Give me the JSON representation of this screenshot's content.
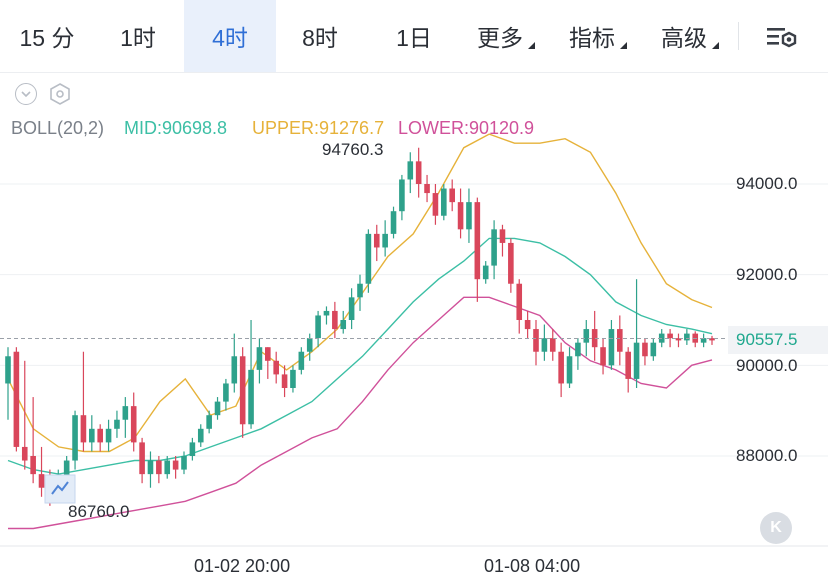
{
  "toolbar": {
    "timeframes": [
      "15 分",
      "1时",
      "4时",
      "8时",
      "1日"
    ],
    "active_index": 2,
    "menus": [
      "更多",
      "指标",
      "高级"
    ],
    "settings_icon": "chart-settings-icon"
  },
  "controls": {
    "collapse_icon": "chevron-down-icon",
    "settings_icon": "hexagon-settings-icon"
  },
  "indicator": {
    "name": "BOLL(20,2)",
    "mid_label": "MID:90698.8",
    "upper_label": "UPPER:91276.7",
    "lower_label": "LOWER:90120.9",
    "colors": {
      "mid": "#3cbfa5",
      "upper": "#e6b23a",
      "lower": "#d0519a",
      "name": "#7a8089"
    }
  },
  "colors": {
    "up": "#2ea18b",
    "down": "#d9465b"
  },
  "chart_data": {
    "type": "candlestick",
    "y_ticks": [
      "94000.0",
      "92000.0",
      "90000.0",
      "88000.0"
    ],
    "x_ticks": [
      "01-02 20:00",
      "01-08 04:00"
    ],
    "current_price": "90557.5",
    "high_label": "94760.3",
    "low_label": "86760.0",
    "ylim": [
      86300,
      95300
    ],
    "candles": [
      [
        89600,
        90200,
        88800,
        90400
      ],
      [
        90300,
        88200,
        88100,
        90400
      ],
      [
        88200,
        87900,
        87700,
        90100
      ],
      [
        88000,
        87600,
        87400,
        89300
      ],
      [
        87600,
        87300,
        87100,
        88200
      ],
      [
        87300,
        87200,
        86900,
        87700
      ],
      [
        87200,
        87500,
        87000,
        87700
      ],
      [
        87500,
        87900,
        87300,
        88000
      ],
      [
        87900,
        88900,
        87700,
        89000
      ],
      [
        88900,
        88300,
        88100,
        90300
      ],
      [
        88300,
        88600,
        88100,
        88900
      ],
      [
        88600,
        88300,
        88100,
        88700
      ],
      [
        88300,
        88600,
        88100,
        88800
      ],
      [
        88600,
        88800,
        88400,
        89000
      ],
      [
        88800,
        89100,
        88400,
        89300
      ],
      [
        89100,
        88300,
        88100,
        89400
      ],
      [
        88300,
        87600,
        87400,
        88400
      ],
      [
        87600,
        87900,
        87300,
        88100
      ],
      [
        87900,
        87600,
        87400,
        88000
      ],
      [
        87600,
        87900,
        87500,
        88000
      ],
      [
        87900,
        87700,
        87500,
        88000
      ],
      [
        87700,
        88000,
        87600,
        88100
      ],
      [
        88000,
        88300,
        87900,
        88400
      ],
      [
        88300,
        88600,
        88200,
        88700
      ],
      [
        88600,
        88900,
        88500,
        89000
      ],
      [
        88900,
        89200,
        88800,
        89300
      ],
      [
        89200,
        89600,
        89000,
        89700
      ],
      [
        89600,
        90200,
        89400,
        90700
      ],
      [
        90200,
        88700,
        88400,
        90400
      ],
      [
        88700,
        89900,
        88600,
        91000
      ],
      [
        89900,
        90400,
        89600,
        90600
      ],
      [
        90400,
        90100,
        89700,
        90400
      ],
      [
        90100,
        89800,
        89600,
        90300
      ],
      [
        89800,
        89500,
        89300,
        90000
      ],
      [
        89500,
        89900,
        89400,
        90000
      ],
      [
        89900,
        90300,
        89800,
        90400
      ],
      [
        90300,
        90600,
        90100,
        90700
      ],
      [
        90600,
        91100,
        90400,
        91200
      ],
      [
        91100,
        91200,
        90900,
        91300
      ],
      [
        91200,
        90800,
        90600,
        91400
      ],
      [
        90800,
        91000,
        90700,
        91200
      ],
      [
        91000,
        91500,
        90800,
        91700
      ],
      [
        91500,
        91800,
        91200,
        92000
      ],
      [
        91800,
        92900,
        91600,
        93000
      ],
      [
        92900,
        92600,
        92300,
        93100
      ],
      [
        92600,
        92900,
        92400,
        93200
      ],
      [
        92900,
        93400,
        92800,
        93500
      ],
      [
        93400,
        94100,
        93200,
        94200
      ],
      [
        94100,
        94500,
        93800,
        94700
      ],
      [
        94500,
        94000,
        93700,
        94800
      ],
      [
        94000,
        93800,
        93600,
        94200
      ],
      [
        93800,
        93300,
        93100,
        94000
      ],
      [
        93300,
        93900,
        93200,
        94000
      ],
      [
        93900,
        93600,
        93400,
        94100
      ],
      [
        93600,
        93000,
        92800,
        93900
      ],
      [
        93000,
        93600,
        92700,
        93900
      ],
      [
        93600,
        91900,
        91400,
        93700
      ],
      [
        91900,
        92200,
        91800,
        92300
      ],
      [
        92200,
        93000,
        91900,
        93200
      ],
      [
        93000,
        92700,
        92400,
        93100
      ],
      [
        92700,
        91800,
        91600,
        92800
      ],
      [
        91800,
        91000,
        90700,
        91900
      ],
      [
        91000,
        90800,
        90600,
        91200
      ],
      [
        90800,
        90300,
        90000,
        91000
      ],
      [
        90300,
        90600,
        90100,
        90900
      ],
      [
        90600,
        90300,
        90100,
        90800
      ],
      [
        90300,
        89600,
        89300,
        90500
      ],
      [
        89600,
        90200,
        89500,
        90400
      ],
      [
        90200,
        90500,
        89900,
        90600
      ],
      [
        90500,
        90800,
        90200,
        91000
      ],
      [
        90800,
        90400,
        90100,
        91200
      ],
      [
        90400,
        90000,
        89800,
        90600
      ],
      [
        90000,
        90800,
        89900,
        91000
      ],
      [
        90800,
        90300,
        90000,
        91100
      ],
      [
        90300,
        89700,
        89400,
        90400
      ],
      [
        89700,
        90500,
        89500,
        91900
      ],
      [
        90500,
        90200,
        90000,
        90600
      ],
      [
        90200,
        90500,
        90100,
        90600
      ],
      [
        90500,
        90700,
        90400,
        90800
      ],
      [
        90700,
        90600,
        90400,
        90800
      ],
      [
        90600,
        90550,
        90400,
        90700
      ],
      [
        90550,
        90700,
        90450,
        90800
      ],
      [
        90700,
        90500,
        90400,
        90750
      ],
      [
        90500,
        90600,
        90400,
        90700
      ],
      [
        90600,
        90550,
        90450,
        90650
      ]
    ],
    "boll_upper": [
      [
        0,
        89700
      ],
      [
        10,
        88600
      ],
      [
        20,
        88200
      ],
      [
        30,
        88100
      ],
      [
        40,
        88100
      ],
      [
        50,
        88400
      ],
      [
        60,
        89200
      ],
      [
        70,
        89700
      ],
      [
        80,
        88900
      ],
      [
        90,
        89100
      ],
      [
        100,
        90300
      ],
      [
        110,
        89900
      ],
      [
        120,
        90300
      ],
      [
        130,
        90800
      ],
      [
        140,
        91600
      ],
      [
        150,
        92400
      ],
      [
        160,
        92900
      ],
      [
        170,
        93800
      ],
      [
        180,
        94800
      ],
      [
        190,
        95100
      ],
      [
        200,
        94900
      ],
      [
        210,
        94900
      ],
      [
        220,
        95000
      ],
      [
        230,
        94700
      ],
      [
        240,
        93800
      ],
      [
        250,
        92700
      ],
      [
        260,
        91800
      ],
      [
        270,
        91450
      ],
      [
        278,
        91276.7
      ]
    ],
    "boll_mid": [
      [
        0,
        87900
      ],
      [
        10,
        87700
      ],
      [
        20,
        87600
      ],
      [
        30,
        87700
      ],
      [
        40,
        87800
      ],
      [
        50,
        87900
      ],
      [
        60,
        87900
      ],
      [
        70,
        88000
      ],
      [
        80,
        88200
      ],
      [
        90,
        88400
      ],
      [
        100,
        88600
      ],
      [
        110,
        88900
      ],
      [
        120,
        89200
      ],
      [
        130,
        89700
      ],
      [
        140,
        90200
      ],
      [
        150,
        90800
      ],
      [
        160,
        91400
      ],
      [
        170,
        91900
      ],
      [
        180,
        92300
      ],
      [
        190,
        92800
      ],
      [
        200,
        92800
      ],
      [
        210,
        92700
      ],
      [
        220,
        92400
      ],
      [
        230,
        92000
      ],
      [
        240,
        91400
      ],
      [
        250,
        91100
      ],
      [
        260,
        90900
      ],
      [
        270,
        90800
      ],
      [
        278,
        90698.8
      ]
    ],
    "boll_lower": [
      [
        0,
        86400
      ],
      [
        10,
        86400
      ],
      [
        20,
        86500
      ],
      [
        30,
        86600
      ],
      [
        40,
        86700
      ],
      [
        50,
        86800
      ],
      [
        60,
        86900
      ],
      [
        70,
        87000
      ],
      [
        80,
        87200
      ],
      [
        90,
        87400
      ],
      [
        100,
        87800
      ],
      [
        110,
        88100
      ],
      [
        120,
        88400
      ],
      [
        130,
        88600
      ],
      [
        140,
        89200
      ],
      [
        150,
        89900
      ],
      [
        160,
        90500
      ],
      [
        170,
        91000
      ],
      [
        180,
        91500
      ],
      [
        190,
        91500
      ],
      [
        200,
        91300
      ],
      [
        210,
        91100
      ],
      [
        220,
        90500
      ],
      [
        230,
        90100
      ],
      [
        240,
        89900
      ],
      [
        250,
        89600
      ],
      [
        260,
        89500
      ],
      [
        270,
        90000
      ],
      [
        278,
        90120.9
      ]
    ]
  }
}
